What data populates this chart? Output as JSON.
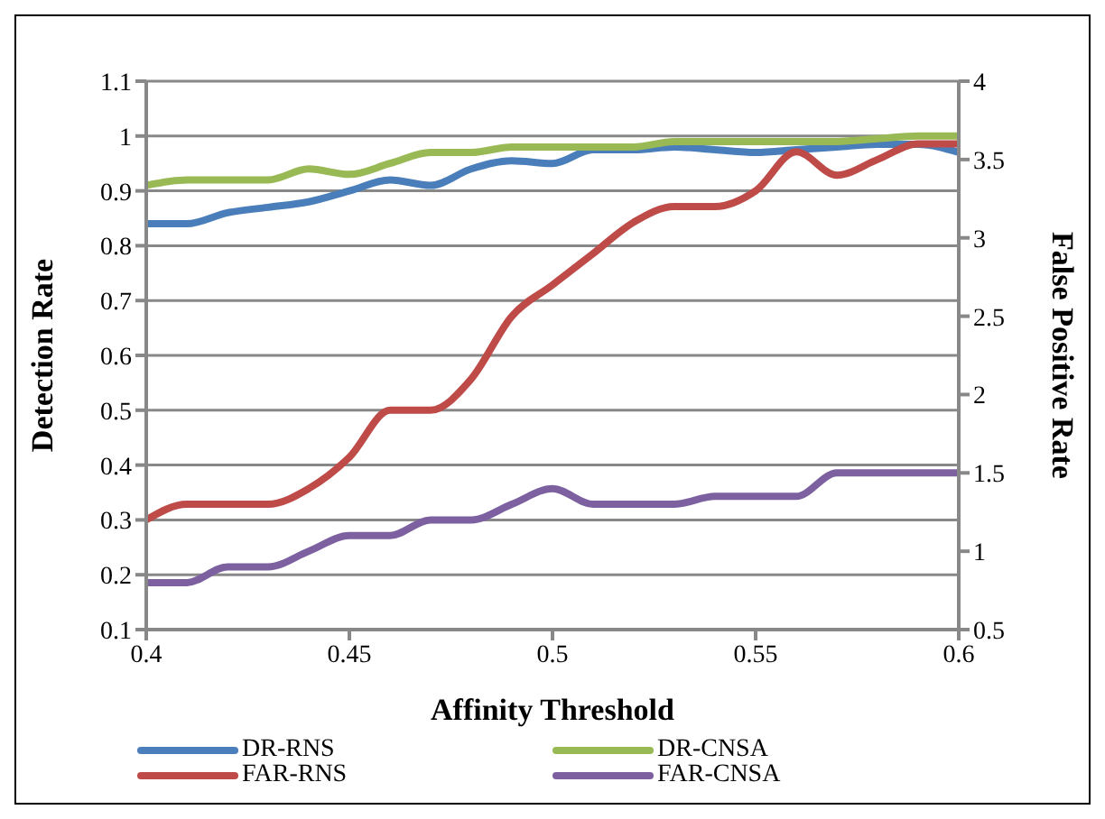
{
  "chart_data": {
    "type": "line",
    "xlabel": "Affinity Threshold",
    "ylabel": "Detection Rate",
    "y2label": "False Positive Rate",
    "x": [
      0.4,
      0.41,
      0.42,
      0.43,
      0.44,
      0.45,
      0.46,
      0.47,
      0.48,
      0.49,
      0.5,
      0.51,
      0.52,
      0.53,
      0.54,
      0.55,
      0.56,
      0.57,
      0.58,
      0.59,
      0.6
    ],
    "series": [
      {
        "name": "DR-RNS",
        "color": "#4a7ebb",
        "values": [
          0.84,
          0.84,
          0.86,
          0.87,
          0.88,
          0.9,
          0.92,
          0.91,
          0.94,
          0.955,
          0.95,
          0.975,
          0.975,
          0.98,
          0.975,
          0.97,
          0.975,
          0.98,
          0.985,
          0.985,
          0.97
        ]
      },
      {
        "name": "DR-CNSA",
        "color": "#98b954",
        "values": [
          0.91,
          0.92,
          0.92,
          0.92,
          0.94,
          0.93,
          0.95,
          0.97,
          0.97,
          0.98,
          0.98,
          0.98,
          0.98,
          0.99,
          0.99,
          0.99,
          0.99,
          0.99,
          0.995,
          1.0,
          1.0
        ]
      },
      {
        "name": "FAR-RNS",
        "color": "#be4b48",
        "axis": "y2",
        "values": [
          1.2,
          1.3,
          1.3,
          1.3,
          1.4,
          1.6,
          1.9,
          1.9,
          2.1,
          2.5,
          2.7,
          2.9,
          3.1,
          3.2,
          3.2,
          3.3,
          3.55,
          3.4,
          3.5,
          3.6,
          3.6
        ]
      },
      {
        "name": "FAR-CNSA",
        "color": "#7d60a0",
        "axis": "y2",
        "values": [
          0.8,
          0.8,
          0.9,
          0.9,
          1.0,
          1.1,
          1.1,
          1.2,
          1.2,
          1.3,
          1.4,
          1.3,
          1.3,
          1.3,
          1.35,
          1.35,
          1.35,
          1.5,
          1.5,
          1.5,
          1.5
        ]
      }
    ],
    "xlim": [
      0.4,
      0.6
    ],
    "xticks": [
      {
        "value": 0.4,
        "label": "0.4"
      },
      {
        "value": 0.45,
        "label": "0.45"
      },
      {
        "value": 0.5,
        "label": "0.5"
      },
      {
        "value": 0.55,
        "label": "0.55"
      },
      {
        "value": 0.6,
        "label": "0.6"
      }
    ],
    "ylim": [
      0.1,
      1.1
    ],
    "yticks": [
      {
        "value": 0.1,
        "label": "0.1"
      },
      {
        "value": 0.2,
        "label": "0.2"
      },
      {
        "value": 0.3,
        "label": "0.3"
      },
      {
        "value": 0.4,
        "label": "0.4"
      },
      {
        "value": 0.5,
        "label": "0.5"
      },
      {
        "value": 0.6,
        "label": "0.6"
      },
      {
        "value": 0.7,
        "label": "0.7"
      },
      {
        "value": 0.8,
        "label": "0.8"
      },
      {
        "value": 0.9,
        "label": "0.9"
      },
      {
        "value": 1,
        "label": "1"
      },
      {
        "value": 1.1,
        "label": "1.1"
      }
    ],
    "y2lim": [
      0.5,
      4
    ],
    "y2ticks": [
      {
        "value": 0.5,
        "label": "0.5"
      },
      {
        "value": 1,
        "label": "1"
      },
      {
        "value": 1.5,
        "label": "1.5"
      },
      {
        "value": 2,
        "label": "2"
      },
      {
        "value": 2.5,
        "label": "2.5"
      },
      {
        "value": 3,
        "label": "3"
      },
      {
        "value": 3.5,
        "label": "3.5"
      },
      {
        "value": 4,
        "label": "4"
      }
    ],
    "grid": "y",
    "legend": "bottom",
    "marker": "none",
    "line_style": "solid"
  }
}
